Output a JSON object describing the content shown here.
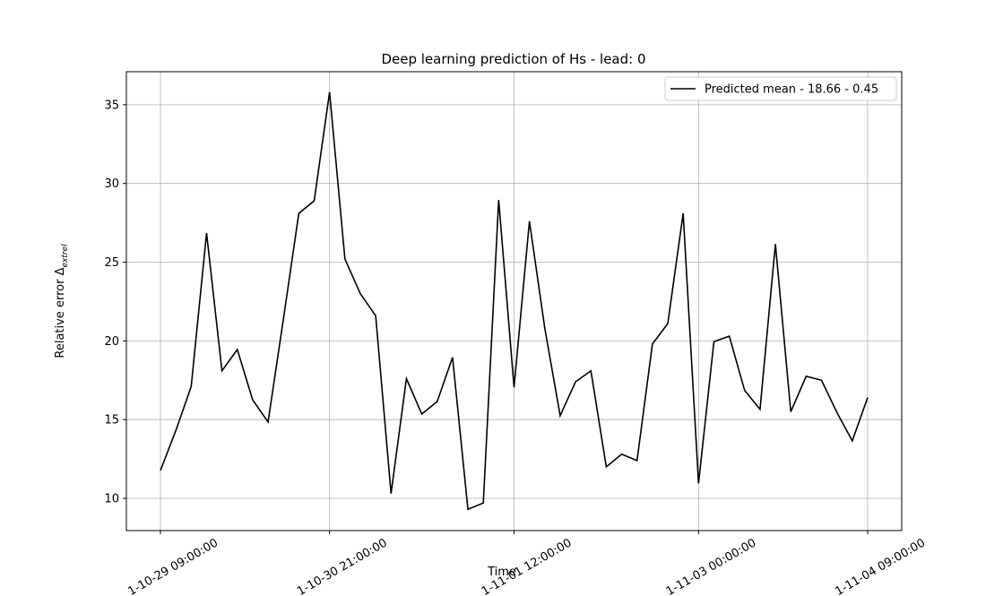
{
  "chart_data": {
    "type": "line",
    "title": "Deep learning prediction of Hs - lead: 0",
    "xlabel": "Time",
    "ylabel": "Relative error Δ",
    "ylabel_sub": "extrel",
    "categories": [
      "1-10-29 09:00:00",
      null,
      null,
      null,
      null,
      null,
      null,
      null,
      null,
      null,
      null,
      "1-10-30 21:00:00",
      null,
      null,
      null,
      null,
      null,
      null,
      null,
      null,
      null,
      null,
      null,
      "1-11-01 12:00:00",
      null,
      null,
      null,
      null,
      null,
      null,
      null,
      null,
      null,
      null,
      null,
      "1-11-03 00:00:00",
      null,
      null,
      null,
      null,
      null,
      null,
      null,
      null,
      null,
      null,
      "1-11-04 09:00:00"
    ],
    "series": [
      {
        "name": "Predicted mean - 18.66 - 0.45",
        "color": "#000000",
        "values": [
          11.77,
          14.3,
          17.1,
          26.85,
          18.1,
          19.45,
          16.25,
          14.85,
          21.4,
          28.1,
          28.9,
          35.8,
          25.2,
          23.0,
          21.6,
          10.3,
          17.6,
          15.35,
          16.15,
          18.95,
          9.3,
          9.7,
          28.95,
          17.05,
          27.6,
          20.8,
          15.25,
          17.4,
          18.1,
          12.0,
          12.8,
          12.4,
          19.8,
          21.1,
          28.1,
          10.95,
          19.95,
          20.3,
          16.85,
          15.65,
          26.15,
          15.5,
          17.75,
          17.5,
          15.45,
          13.65,
          16.4
        ]
      }
    ],
    "ylim": [
      7.95,
      37.1
    ],
    "yticks": [
      10,
      15,
      20,
      25,
      30,
      35
    ],
    "grid": true,
    "legend": "upper right"
  }
}
